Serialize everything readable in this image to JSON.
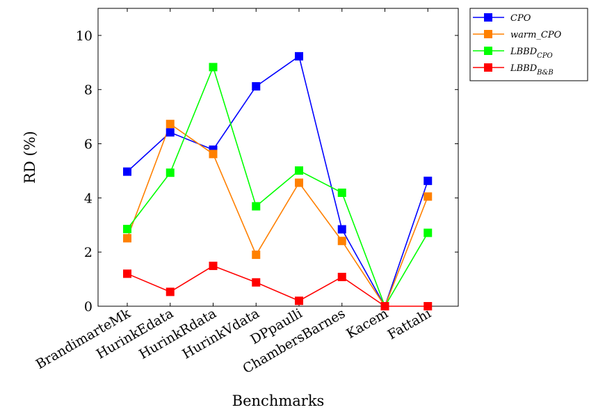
{
  "chart_data": {
    "type": "line",
    "xlabel": "Benchmarks",
    "ylabel": "RD (%)",
    "ylim": [
      0,
      11
    ],
    "yticks": [
      0,
      2,
      4,
      6,
      8,
      10
    ],
    "grid": false,
    "legend_position": "outside-top-right",
    "categories": [
      "BrandimarteMk",
      "HurinkEdata",
      "HurinkRdata",
      "HurinkVdata",
      "DPpaulli",
      "ChambersBarnes",
      "Kacem",
      "Fattahi"
    ],
    "series": [
      {
        "name": "CPO",
        "name_main": "CPO",
        "name_sub": "",
        "color": "#0000ff",
        "values": [
          4.97,
          6.42,
          5.78,
          8.12,
          9.23,
          2.84,
          0.0,
          4.63
        ]
      },
      {
        "name": "warm_CPO",
        "name_main": "warm_CPO",
        "name_sub": "",
        "color": "#ff8000",
        "values": [
          2.51,
          6.73,
          5.62,
          1.9,
          4.56,
          2.41,
          0.0,
          4.05
        ]
      },
      {
        "name": "LBBD_CPO",
        "name_main": "LBBD",
        "name_sub": "CPO",
        "color": "#00ff00",
        "values": [
          2.85,
          4.93,
          8.83,
          3.69,
          5.01,
          4.19,
          0.0,
          2.71
        ]
      },
      {
        "name": "LBBD_B&B",
        "name_main": "LBBD",
        "name_sub": "B&B",
        "color": "#ff0000",
        "values": [
          1.2,
          0.53,
          1.49,
          0.88,
          0.2,
          1.08,
          0.0,
          0.0
        ]
      }
    ]
  }
}
